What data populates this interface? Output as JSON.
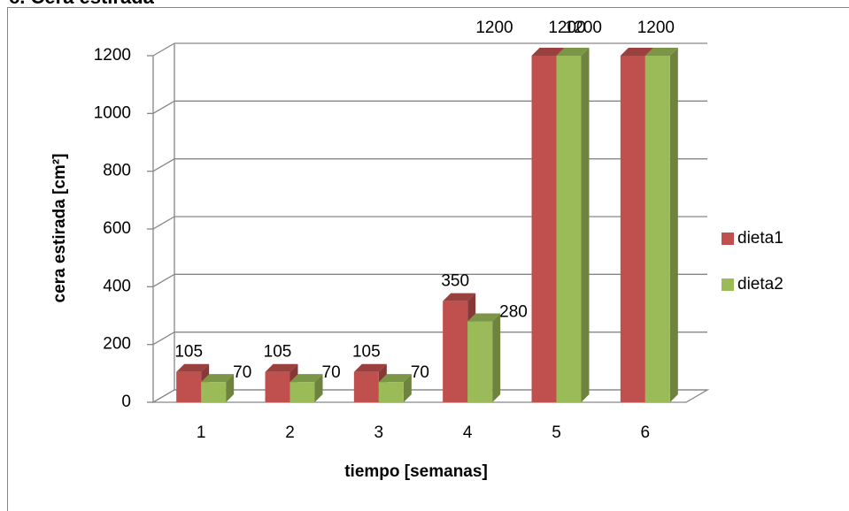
{
  "chart_data": {
    "type": "bar3d",
    "title": "c. Cera estirada",
    "x_label": "tiempo [semanas]",
    "y_label": "cera estirada [cm²]",
    "categories": [
      "1",
      "2",
      "3",
      "4",
      "5",
      "6"
    ],
    "series": [
      {
        "name": "dieta1",
        "color": "#c0504d",
        "values": [
          105,
          105,
          105,
          350,
          1200,
          1200
        ]
      },
      {
        "name": "dieta2",
        "color": "#9bbb59",
        "values": [
          70,
          70,
          70,
          280,
          1200,
          1200
        ]
      }
    ],
    "ylim": [
      0,
      1200
    ],
    "yticks": [
      0,
      200,
      400,
      600,
      800,
      1000,
      1200
    ],
    "grid": true,
    "legend": "right"
  }
}
